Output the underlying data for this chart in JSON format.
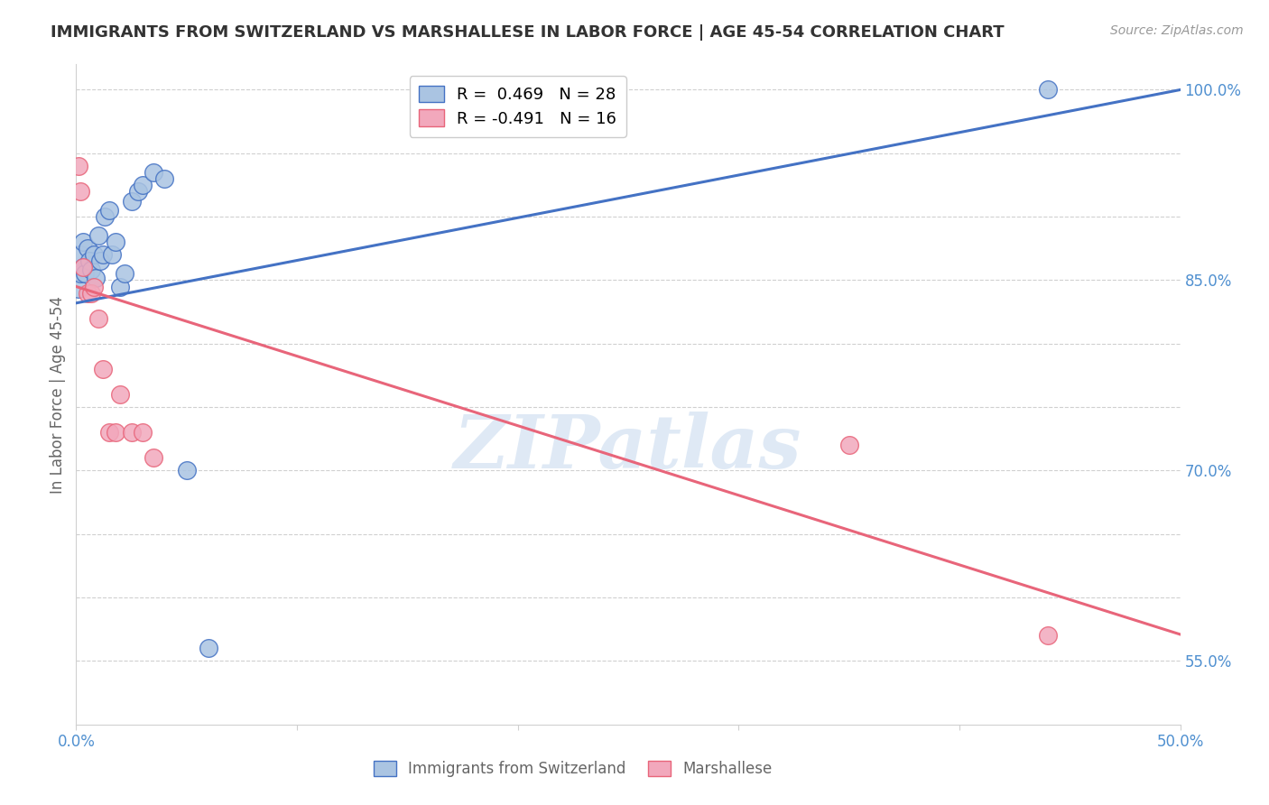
{
  "title": "IMMIGRANTS FROM SWITZERLAND VS MARSHALLESE IN LABOR FORCE | AGE 45-54 CORRELATION CHART",
  "source": "Source: ZipAtlas.com",
  "ylabel": "In Labor Force | Age 45-54",
  "xlim": [
    0.0,
    0.5
  ],
  "ylim": [
    0.5,
    1.02
  ],
  "swiss_color": "#aac4e2",
  "marsh_color": "#f2a8bc",
  "swiss_line_color": "#4472c4",
  "marsh_line_color": "#e8657a",
  "swiss_R": 0.469,
  "swiss_N": 28,
  "marsh_R": -0.491,
  "marsh_N": 16,
  "swiss_line_y0": 0.832,
  "swiss_line_y1": 1.0,
  "marsh_line_y0": 0.845,
  "marsh_line_y1": 0.571,
  "swiss_x": [
    0.001,
    0.002,
    0.002,
    0.003,
    0.003,
    0.004,
    0.005,
    0.006,
    0.007,
    0.008,
    0.009,
    0.01,
    0.011,
    0.012,
    0.013,
    0.015,
    0.016,
    0.018,
    0.02,
    0.022,
    0.025,
    0.028,
    0.03,
    0.035,
    0.04,
    0.05,
    0.06,
    0.44
  ],
  "swiss_y": [
    0.843,
    0.855,
    0.87,
    0.86,
    0.88,
    0.855,
    0.875,
    0.865,
    0.858,
    0.87,
    0.852,
    0.885,
    0.865,
    0.87,
    0.9,
    0.905,
    0.87,
    0.88,
    0.845,
    0.855,
    0.912,
    0.92,
    0.925,
    0.935,
    0.93,
    0.7,
    0.56,
    1.0
  ],
  "marsh_x": [
    0.001,
    0.002,
    0.003,
    0.005,
    0.007,
    0.008,
    0.01,
    0.012,
    0.015,
    0.018,
    0.02,
    0.025,
    0.03,
    0.035,
    0.35,
    0.44
  ],
  "marsh_y": [
    0.94,
    0.92,
    0.86,
    0.84,
    0.84,
    0.845,
    0.82,
    0.78,
    0.73,
    0.73,
    0.76,
    0.73,
    0.73,
    0.71,
    0.72,
    0.57
  ],
  "background_color": "#ffffff",
  "grid_color": "#d0d0d0",
  "watermark_color": "#c5d8ee",
  "title_color": "#333333",
  "source_color": "#999999",
  "tick_color": "#5090d0",
  "label_color": "#666666"
}
